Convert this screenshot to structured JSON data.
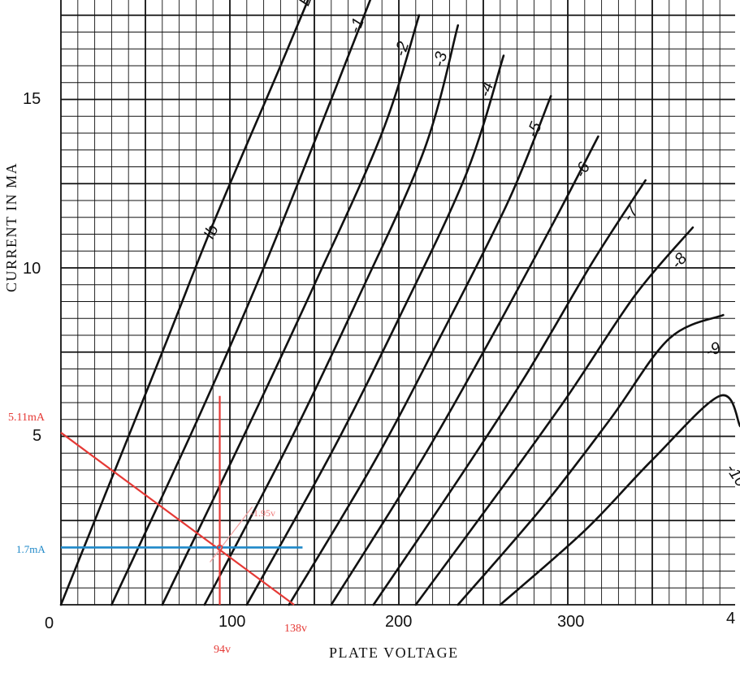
{
  "chart_data": {
    "type": "line",
    "xlabel": "PLATE VOLTAGE",
    "ylabel": "CURRENT IN MA",
    "xlim": [
      0,
      400
    ],
    "ylim": [
      0,
      18
    ],
    "x_ticks": [
      "0",
      "100",
      "200",
      "300",
      "4"
    ],
    "y_ticks": [
      "5",
      "10",
      "15"
    ],
    "grid": true,
    "series": [
      {
        "name": "EC=0",
        "label": "EC=0",
        "points": [
          [
            0,
            0
          ],
          [
            60,
            7.5
          ],
          [
            90,
            11.3
          ],
          [
            130,
            16
          ],
          [
            155,
            19
          ]
        ]
      },
      {
        "name": "-1",
        "label": "-1",
        "points": [
          [
            30,
            0
          ],
          [
            80,
            5.4
          ],
          [
            120,
            10
          ],
          [
            160,
            15
          ],
          [
            185,
            18.2
          ]
        ]
      },
      {
        "name": "-2",
        "label": "-2",
        "points": [
          [
            60,
            0
          ],
          [
            110,
            5.2
          ],
          [
            150,
            9.5
          ],
          [
            190,
            14
          ],
          [
            212,
            17.5
          ]
        ]
      },
      {
        "name": "-3",
        "label": "-3",
        "points": [
          [
            85,
            0
          ],
          [
            135,
            4.8
          ],
          [
            175,
            9
          ],
          [
            215,
            13.5
          ],
          [
            235,
            17.2
          ]
        ]
      },
      {
        "name": "-4",
        "label": "-4",
        "points": [
          [
            110,
            0
          ],
          [
            160,
            4.5
          ],
          [
            200,
            8.5
          ],
          [
            240,
            12.8
          ],
          [
            262,
            16.3
          ]
        ]
      },
      {
        "name": "-5",
        "label": "-5",
        "points": [
          [
            135,
            0
          ],
          [
            185,
            4.2
          ],
          [
            225,
            8
          ],
          [
            265,
            12
          ],
          [
            290,
            15.1
          ]
        ]
      },
      {
        "name": "-6",
        "label": "-6",
        "points": [
          [
            160,
            0
          ],
          [
            210,
            4
          ],
          [
            250,
            7.5
          ],
          [
            290,
            11.2
          ],
          [
            318,
            13.9
          ]
        ]
      },
      {
        "name": "-7",
        "label": "-7",
        "points": [
          [
            185,
            0
          ],
          [
            235,
            3.7
          ],
          [
            275,
            6.8
          ],
          [
            315,
            10.2
          ],
          [
            346,
            12.6
          ]
        ]
      },
      {
        "name": "-8",
        "label": "-8",
        "points": [
          [
            210,
            0
          ],
          [
            260,
            3.4
          ],
          [
            300,
            6.2
          ],
          [
            340,
            9.2
          ],
          [
            374,
            11.2
          ]
        ]
      },
      {
        "name": "-9",
        "label": "-9",
        "points": [
          [
            235,
            0
          ],
          [
            285,
            2.9
          ],
          [
            325,
            5.5
          ],
          [
            360,
            7.9
          ],
          [
            392,
            8.6
          ]
        ]
      },
      {
        "name": "-10",
        "label": "-10",
        "points": [
          [
            260,
            0
          ],
          [
            310,
            2.2
          ],
          [
            350,
            4.3
          ],
          [
            390,
            6.2
          ],
          [
            402,
            5.3
          ]
        ]
      }
    ],
    "load_line": {
      "points": [
        [
          0,
          5.11
        ],
        [
          138,
          0
        ]
      ],
      "color": "#e53935"
    },
    "operating_point": {
      "x": 94,
      "y": 1.7
    },
    "vertical_marker": {
      "x": 94,
      "color": "#e53935"
    },
    "horizontal_marker": {
      "y": 1.7,
      "color": "#1e88c8"
    },
    "annotations": {
      "ib_label": "Ib",
      "current_intercept": "5.11mA",
      "voltage_intercept": "138v",
      "op_voltage": "94v",
      "op_current": "1.7mA",
      "grid_bias": "-1.95v"
    }
  }
}
